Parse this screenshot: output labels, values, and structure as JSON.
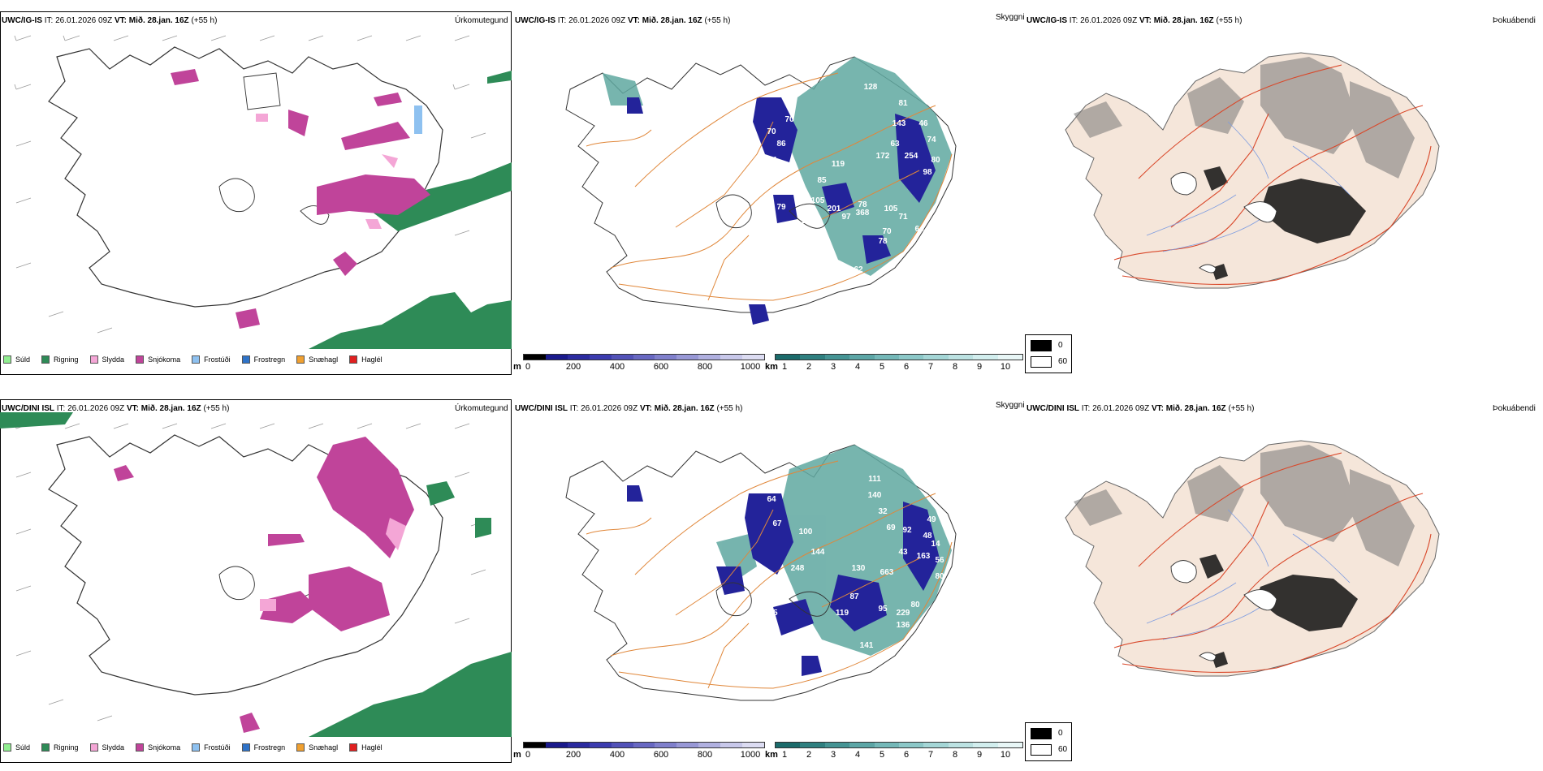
{
  "rows": [
    {
      "precip_title": {
        "model": "UWC/IG-IS",
        "it": "IT: 26.01.2026 09Z",
        "vt": "VT: Mið. 28.jan. 16Z",
        "lead": "(+55 h)",
        "label": "Úrkomutegund"
      },
      "cloud_title": {
        "model": "UWC/IG-IS",
        "it": "IT: 26.01.2026 09Z",
        "vt": "VT: Mið. 28.jan. 16Z",
        "lead": "(+55 h)",
        "label": "Skyggni"
      },
      "fog_title": {
        "model": "UWC/IG-IS",
        "it": "IT: 26.01.2026 09Z",
        "vt": "VT: Mið. 28.jan. 16Z",
        "lead": "(+55 h)",
        "label": "Þokuábendi"
      },
      "cloud_labels": [
        "70",
        "70",
        "86",
        "11",
        "79",
        "105",
        "85",
        "201",
        "97",
        "107",
        "368",
        "78",
        "105",
        "70",
        "78",
        "62",
        "119",
        "128",
        "81",
        "143",
        "46",
        "74",
        "172",
        "63",
        "254",
        "80",
        "98",
        "71",
        "64"
      ]
    },
    {
      "precip_title": {
        "model": "UWC/DINI ISL",
        "it": "IT: 26.01.2026 09Z",
        "vt": "VT: Mið. 28.jan. 16Z",
        "lead": "(+55 h)",
        "label": "Úrkomutegund"
      },
      "cloud_title": {
        "model": "UWC/DINI ISL",
        "it": "IT: 26.01.2026 09Z",
        "vt": "VT: Mið. 28.jan. 16Z",
        "lead": "(+55 h)",
        "label": "Skyggni"
      },
      "fog_title": {
        "model": "UWC/DINI ISL",
        "it": "IT: 26.01.2026 09Z",
        "vt": "VT: Mið. 28.jan. 16Z",
        "lead": "(+55 h)",
        "label": "Þokuábendi"
      },
      "cloud_labels": [
        "64",
        "67",
        "100",
        "144",
        "248",
        "75",
        "119",
        "95",
        "229",
        "141",
        "41",
        "130",
        "87",
        "663",
        "111",
        "140",
        "32",
        "69",
        "92",
        "43",
        "49",
        "48",
        "56",
        "80",
        "136",
        "80",
        "163",
        "14"
      ]
    }
  ],
  "precip_legend": [
    {
      "label": "Súld",
      "color": "#90ee90"
    },
    {
      "label": "Rigning",
      "color": "#2e8b57"
    },
    {
      "label": "Slydda",
      "color": "#f4a6d6"
    },
    {
      "label": "Snjókoma",
      "color": "#c0449a"
    },
    {
      "label": "Frostúði",
      "color": "#8ec1f0"
    },
    {
      "label": "Frostregn",
      "color": "#2f73c8"
    },
    {
      "label": "Snæhagl",
      "color": "#f0a030"
    },
    {
      "label": "Haglél",
      "color": "#e02020"
    }
  ],
  "height_bar": {
    "unit": "m",
    "ticks": [
      "0",
      "200",
      "400",
      "600",
      "800",
      "1000"
    ],
    "colors": [
      "#000000",
      "#1a1a8c",
      "#2b2ba0",
      "#3c3caf",
      "#5252b8",
      "#6868c2",
      "#8080cc",
      "#9898d6",
      "#b0b0e0",
      "#c8c8ea",
      "#dcdcf2"
    ]
  },
  "visibility_bar": {
    "unit": "km",
    "ticks": [
      "1",
      "2",
      "3",
      "4",
      "5",
      "6",
      "7",
      "8",
      "9",
      "10"
    ],
    "colors": [
      "#1b6b6b",
      "#2f8080",
      "#459494",
      "#5ca6a6",
      "#74b8b8",
      "#8cc8c8",
      "#a4d6d6",
      "#bce2e2",
      "#d2eeee",
      "#e8f6f6"
    ]
  },
  "fog_legend": [
    {
      "label": "0",
      "color": "#000000"
    },
    {
      "label": "60",
      "color": "#ffffff"
    }
  ],
  "colors": {
    "rain": "#2e8b57",
    "snow": "#c0449a",
    "sleet": "#f4a6d6",
    "cloud_low": "#23239a",
    "cloud_mid": "#5fa8a0",
    "road": "#e0873a",
    "fog_land": "#f5e6da",
    "fog_road": "#d9482a"
  }
}
